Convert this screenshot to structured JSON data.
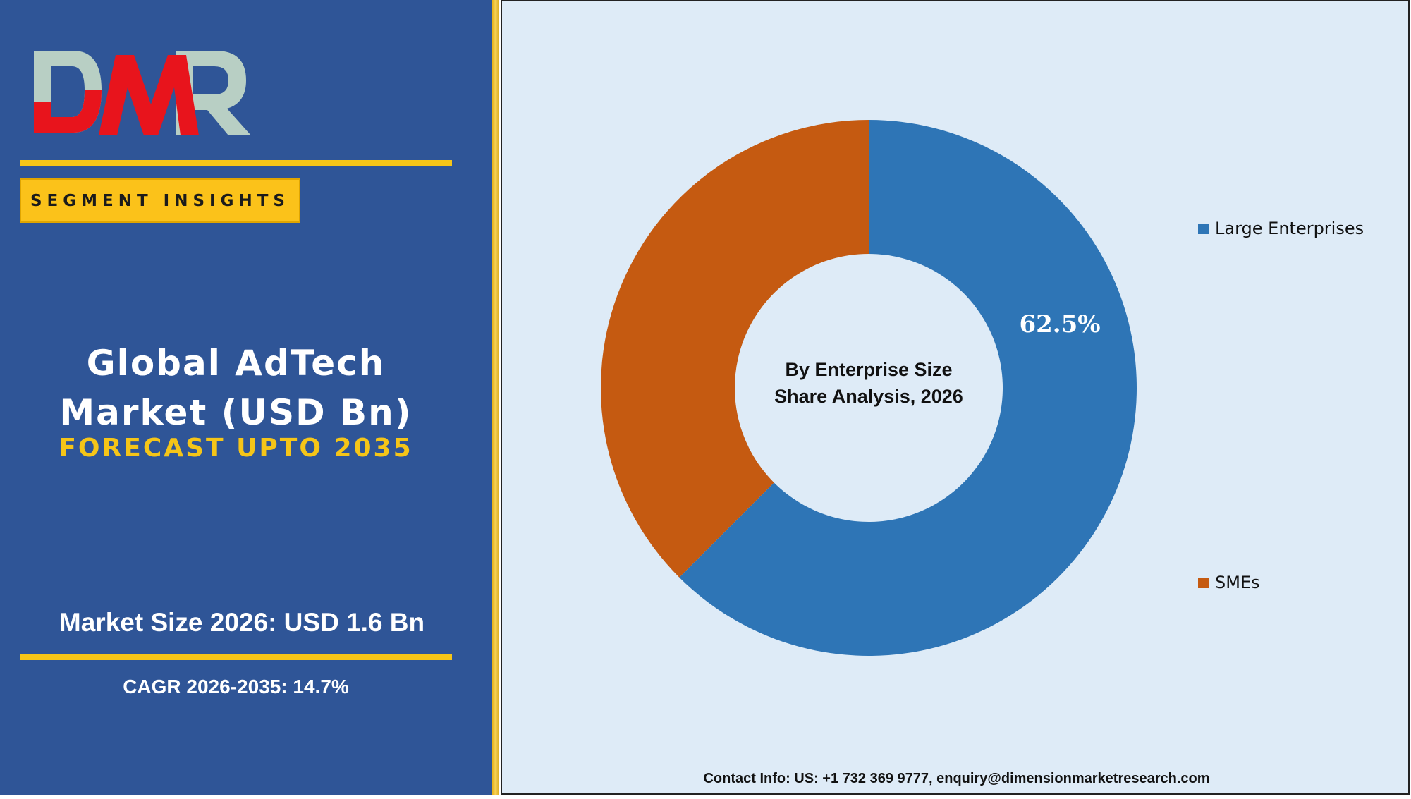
{
  "brand": {
    "logo_text": "DMR",
    "logo_red": "#e8141c",
    "logo_grey": "#b8cfc4"
  },
  "left": {
    "segment_label": "SEGMENT INSIGHTS",
    "title_line1": "Global AdTech",
    "title_line2": "Market (USD Bn)",
    "forecast": "FORECAST UPTO 2035",
    "market_size": "Market Size 2026: USD 1.6 Bn",
    "cagr": "CAGR 2026-2035: 14.7%"
  },
  "colors": {
    "panel_bg": "#2f5597",
    "accent": "#f5c518",
    "chart_bg": "#deebf7"
  },
  "chart_data": {
    "type": "pie",
    "style": "donut",
    "center_label_line1": "By Enterprise Size",
    "center_label_line2": "Share Analysis, 2026",
    "categories": [
      "Large Enterprises",
      "SMEs"
    ],
    "values": [
      62.5,
      37.5
    ],
    "colors": [
      "#2e75b6",
      "#c55a11"
    ],
    "data_labels": [
      "62.5%",
      ""
    ],
    "legend": "right"
  },
  "footer": {
    "contact": "Contact Info: US: +1 732 369 9777, enquiry@dimensionmarketresearch.com"
  }
}
